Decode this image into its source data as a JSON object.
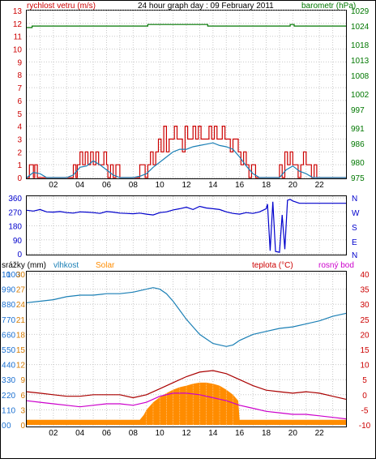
{
  "header": {
    "title": "24 hour graph day : 09 February 2011",
    "left_label": "rychlost vetru (m/s)",
    "right_label": "barometr (hPa)"
  },
  "panel2": {
    "label_N": "N",
    "label_W": "W",
    "label_S": "S",
    "label_E": "E",
    "label_N2": "N"
  },
  "panel3": {
    "label_srazky": "srážky (mm)",
    "label_vlhkost": "vlhkost",
    "label_solar": "Solar",
    "label_teplota": "teplota (°C)",
    "label_rosny": "rosný bod"
  },
  "colors": {
    "wind": "#cc0000",
    "gust_secondary": "#1a7fb5",
    "pressure": "#007700",
    "direction": "#0000cc",
    "humidity": "#1a7fb5",
    "solar": "#ff8c00",
    "temperature": "#aa0000",
    "dewpoint": "#cc00cc",
    "rain_axis": "#1a6fd0",
    "solar_axis": "#d47a00"
  },
  "chart_data": [
    {
      "type": "line",
      "title": "24 hour graph day : 09 February 2011",
      "xlabel": "",
      "x_ticks": [
        "02",
        "04",
        "06",
        "08",
        "10",
        "12",
        "14",
        "16",
        "18",
        "20",
        "22"
      ],
      "xlim": [
        0,
        24
      ],
      "y_left": {
        "label": "rychlost vetru (m/s)",
        "ticks": [
          0,
          1,
          2,
          3,
          4,
          5,
          6,
          7,
          8,
          9,
          10,
          11,
          12,
          13
        ],
        "range": [
          0,
          13
        ]
      },
      "y_right": {
        "label": "barometr (hPa)",
        "ticks": [
          975,
          980,
          986,
          991,
          997,
          1002,
          1008,
          1013,
          1018,
          1024,
          1029
        ],
        "range": [
          975,
          1029
        ]
      },
      "series": [
        {
          "name": "rychlost vetru (m/s)",
          "axis": "left",
          "x": [
            0,
            0.2,
            0.3,
            0.5,
            0.6,
            0.8,
            1.0,
            1.5,
            2.0,
            2.5,
            3.0,
            3.4,
            3.5,
            3.7,
            3.8,
            4.0,
            4.2,
            4.4,
            4.6,
            4.8,
            5.0,
            5.2,
            5.4,
            5.6,
            5.8,
            6.0,
            6.1,
            6.3,
            6.5,
            6.7,
            7.0,
            7.5,
            8.0,
            8.3,
            8.5,
            8.7,
            8.9,
            9.1,
            9.3,
            9.5,
            9.7,
            9.9,
            10.1,
            10.3,
            10.5,
            10.7,
            10.9,
            11.1,
            11.3,
            11.5,
            11.7,
            11.9,
            12.1,
            12.3,
            12.5,
            12.7,
            12.9,
            13.1,
            13.3,
            13.5,
            13.7,
            13.9,
            14.1,
            14.3,
            14.5,
            14.7,
            14.9,
            15.1,
            15.3,
            15.5,
            15.7,
            15.9,
            16.1,
            16.3,
            16.5,
            16.7,
            16.9,
            17.2,
            17.5,
            18.0,
            18.5,
            18.8,
            19.0,
            19.2,
            19.4,
            19.6,
            19.8,
            20.0,
            20.2,
            20.4,
            20.6,
            20.8,
            21.0,
            21.2,
            21.4,
            21.6,
            21.8,
            22.0,
            22.5,
            23.0,
            23.5,
            24.0
          ],
          "values": [
            0,
            1,
            1,
            0,
            1,
            0,
            0,
            0,
            0,
            0,
            0,
            0,
            1,
            0,
            1,
            2,
            1,
            2,
            1,
            2,
            1,
            2,
            1,
            1,
            2,
            1,
            0,
            1,
            0,
            1,
            0,
            0,
            0,
            0,
            1,
            1,
            0,
            1,
            2,
            1,
            2,
            3,
            2,
            4,
            2,
            3,
            3,
            4,
            3,
            3,
            2,
            4,
            3,
            3,
            4,
            3,
            4,
            3,
            3,
            3,
            4,
            3,
            4,
            3,
            3,
            4,
            3,
            3,
            2,
            3,
            3,
            2,
            1,
            2,
            1,
            0,
            1,
            0,
            0,
            0,
            0,
            0,
            1,
            0,
            2,
            1,
            2,
            1,
            1,
            0,
            1,
            2,
            1,
            1,
            0,
            1,
            0,
            0,
            0,
            0,
            0,
            0
          ]
        },
        {
          "name": "",
          "axis": "left",
          "x": [
            0,
            0.5,
            1.0,
            1.5,
            2.0,
            3.0,
            3.5,
            4.0,
            4.5,
            5.0,
            5.5,
            6.0,
            6.5,
            7.0,
            8.0,
            8.5,
            9.0,
            9.5,
            10.0,
            10.5,
            11.0,
            11.5,
            12.0,
            12.5,
            13.0,
            13.5,
            14.0,
            14.5,
            15.0,
            15.5,
            16.0,
            16.5,
            17.0,
            17.5,
            18.0,
            19.0,
            19.5,
            20.0,
            20.5,
            21.0,
            21.5,
            22.0,
            23.0,
            24.0
          ],
          "values": [
            0,
            0.4,
            0.3,
            0,
            0,
            0,
            0.2,
            0.8,
            0.9,
            1.3,
            1.0,
            0.6,
            0.2,
            0,
            0,
            0.1,
            0.3,
            0.8,
            1.2,
            1.6,
            2.0,
            2.2,
            2.2,
            2.4,
            2.5,
            2.6,
            2.7,
            2.5,
            2.4,
            2.2,
            1.6,
            0.9,
            0.3,
            0,
            0,
            0,
            0.6,
            0.9,
            0.5,
            0.3,
            0,
            0,
            0,
            0
          ]
        },
        {
          "name": "barometr (hPa)",
          "axis": "right",
          "x": [
            0,
            0.3,
            0.4,
            9.0,
            9.1,
            13.5,
            13.6,
            19.7,
            19.8,
            20.0,
            20.1,
            24.0
          ],
          "values": [
            1023.5,
            1023.5,
            1024,
            1024,
            1024.5,
            1024.5,
            1024,
            1024,
            1024.5,
            1024.5,
            1024,
            1024
          ]
        }
      ]
    },
    {
      "type": "line",
      "title": "",
      "x_ticks": [
        "02",
        "04",
        "06",
        "08",
        "10",
        "12",
        "14",
        "16",
        "18",
        "20",
        "22"
      ],
      "xlim": [
        0,
        24
      ],
      "y_left": {
        "ticks": [
          0,
          90,
          180,
          270,
          360
        ],
        "range": [
          0,
          360
        ]
      },
      "y_right_labels": [
        "N",
        "W",
        "S",
        "E",
        "N"
      ],
      "series": [
        {
          "name": "",
          "x": [
            0,
            0.5,
            1.0,
            1.5,
            2.0,
            2.5,
            3.0,
            3.5,
            4.0,
            4.5,
            5.0,
            5.5,
            6.0,
            6.5,
            7.0,
            7.5,
            8.0,
            8.5,
            9.0,
            9.5,
            10.0,
            10.5,
            11.0,
            11.5,
            12.0,
            12.5,
            13.0,
            13.5,
            14.0,
            14.5,
            15.0,
            15.5,
            16.0,
            16.5,
            17.0,
            17.5,
            18.0,
            18.1,
            18.3,
            18.5,
            18.7,
            19.0,
            19.2,
            19.4,
            19.6,
            19.8,
            20.0,
            20.5,
            21.0,
            21.5,
            22.0,
            22.5,
            23.0,
            23.5,
            24.0
          ],
          "values": [
            280,
            275,
            285,
            270,
            268,
            272,
            265,
            262,
            270,
            268,
            265,
            260,
            272,
            268,
            262,
            260,
            258,
            262,
            255,
            250,
            265,
            270,
            282,
            290,
            300,
            285,
            305,
            295,
            290,
            285,
            270,
            260,
            255,
            265,
            260,
            270,
            290,
            320,
            20,
            335,
            15,
            10,
            250,
            30,
            345,
            350,
            340,
            325,
            325,
            325,
            325,
            325,
            325,
            325,
            325
          ]
        }
      ]
    },
    {
      "type": "line",
      "title": "",
      "x_ticks": [
        "02",
        "04",
        "06",
        "08",
        "10",
        "12",
        "14",
        "16",
        "18",
        "20",
        "22"
      ],
      "xlim": [
        0,
        24
      ],
      "y_left_outer": {
        "label": "srážky (mm)",
        "ticks": [
          0,
          1,
          2,
          3,
          4,
          5,
          6,
          7,
          8,
          9,
          10
        ],
        "range": [
          0,
          10
        ]
      },
      "y_left_humidity": {
        "label": "vlhkost",
        "ticks": [
          0,
          10,
          20,
          30,
          40,
          50,
          60,
          70,
          80,
          90,
          100
        ],
        "range": [
          0,
          100
        ]
      },
      "y_left_solar": {
        "label": "Solar",
        "ticks": [
          0,
          3,
          6,
          9,
          12,
          15,
          18,
          21,
          24,
          27,
          30
        ],
        "range": [
          0,
          30
        ]
      },
      "y_right": {
        "label": "teplota (°C)",
        "ticks": [
          -10,
          -5,
          0,
          5,
          10,
          15,
          20,
          25,
          30,
          35,
          40
        ],
        "range": [
          -10,
          40
        ]
      },
      "series": [
        {
          "name": "vlhkost",
          "axis": "humidity",
          "x": [
            0,
            1,
            2,
            3,
            4,
            5,
            6,
            7,
            8,
            9,
            9.5,
            10,
            10.5,
            11,
            11.5,
            12,
            12.5,
            13,
            13.5,
            14,
            14.5,
            15,
            15.5,
            16,
            17,
            18,
            19,
            20,
            21,
            22,
            23,
            24
          ],
          "values": [
            81,
            82,
            83,
            85,
            86,
            86,
            87,
            87,
            88,
            90,
            91,
            90,
            87,
            82,
            76,
            70,
            65,
            60,
            57,
            54,
            53,
            52,
            53,
            56,
            60,
            62,
            64,
            65,
            67,
            69,
            72,
            74
          ]
        },
        {
          "name": "Solar",
          "axis": "solar",
          "x": [
            0,
            8.5,
            8.8,
            9.0,
            9.5,
            10.0,
            10.5,
            11.0,
            11.5,
            12.0,
            12.5,
            13.0,
            13.5,
            14.0,
            14.5,
            15.0,
            15.5,
            15.9,
            16.0,
            24.0
          ],
          "values": [
            1,
            1,
            2,
            3,
            4.5,
            5.5,
            6.3,
            7.0,
            7.5,
            7.8,
            8.2,
            8.4,
            8.4,
            8.2,
            7.8,
            7.0,
            6.0,
            4.8,
            1,
            1
          ]
        },
        {
          "name": "teplota (°C)",
          "axis": "right",
          "x": [
            0,
            1,
            2,
            3,
            4,
            5,
            6,
            7,
            8,
            9,
            10,
            11,
            12,
            13,
            14,
            15,
            16,
            17,
            18,
            19,
            20,
            21,
            22,
            23,
            24
          ],
          "values": [
            1,
            0.5,
            0,
            -0.5,
            -0.5,
            0,
            0,
            0,
            -1,
            0,
            2,
            4,
            6,
            7.5,
            8,
            7,
            5,
            3,
            1.5,
            1,
            0.5,
            1,
            0.5,
            -0.5,
            -1.5
          ]
        },
        {
          "name": "rosný bod",
          "axis": "right",
          "x": [
            0,
            1,
            2,
            3,
            4,
            5,
            6,
            7,
            8,
            9,
            10,
            11,
            12,
            13,
            14,
            15,
            16,
            17,
            18,
            19,
            20,
            21,
            22,
            23,
            24
          ],
          "values": [
            -2,
            -2.5,
            -3,
            -3.5,
            -4,
            -3.5,
            -3,
            -3,
            -3.5,
            -2.5,
            -0.5,
            0.5,
            0.5,
            0,
            -1,
            -2,
            -3.5,
            -4.5,
            -5.5,
            -6,
            -6.5,
            -6.5,
            -7,
            -7.5,
            -8
          ]
        }
      ]
    }
  ]
}
